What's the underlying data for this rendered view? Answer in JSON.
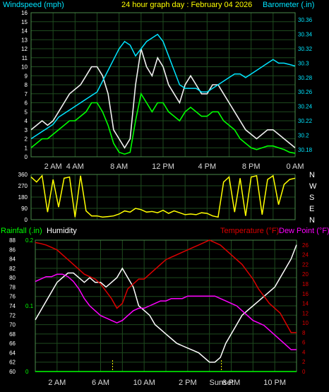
{
  "colors": {
    "background": "#000000",
    "grid": "#1e4a1e",
    "frame": "#4a8a4a",
    "wind_speed": "#00ff00",
    "gust": "#f0f0f0",
    "barometer": "#00e5ff",
    "direction": "#ffff00",
    "temperature": "#dd0000",
    "dew_point": "#ff00ff",
    "humidity": "#ffffff",
    "rainfall": "#00ff00",
    "axis_text": "#ffffff"
  },
  "header": {
    "left": "Windspeed (mph)",
    "center": "24 hour graph day : February 04 2026",
    "right": "Barometer (.in)"
  },
  "x_ticks_top": [
    "2 AM",
    "4 AM",
    "8 AM",
    "12 PM",
    "4 PM",
    "8 PM",
    "0 AM"
  ],
  "direction_labels": [
    "N",
    "W",
    "S",
    "E",
    "N"
  ],
  "lower_header": {
    "rainfall": "Rainfall (.in)",
    "humidity": "Humidity",
    "temperature": "Temperature (°F)",
    "dew_point": "Dew Point (°F)"
  },
  "x_ticks_bottom": [
    "2 AM",
    "6 AM",
    "10 AM",
    "2 PM",
    "6 PM",
    "10 PM"
  ],
  "events": [
    "Sunset"
  ],
  "chart_data": [
    {
      "type": "line",
      "title": "Windspeed (mph) / Barometer (.in)",
      "x_unit": "hour of day",
      "xlim": [
        0,
        24
      ],
      "y_left": {
        "label": "Windspeed (mph)",
        "ylim": [
          0,
          16
        ],
        "ticks": [
          0,
          1,
          2,
          3,
          4,
          5,
          6,
          7,
          8,
          9,
          10,
          11,
          12,
          13,
          14,
          15,
          16
        ]
      },
      "y_right": {
        "label": "Barometer (.in)",
        "ylim": [
          30.17,
          30.37
        ],
        "ticks": [
          "30.18",
          "30.2",
          "30.22",
          "30.24",
          "30.26",
          "30.28",
          "30.3",
          "30.32",
          "30.34",
          "30.36"
        ]
      },
      "series": [
        {
          "name": "Wind gust",
          "axis": "left",
          "x": [
            0,
            0.5,
            1,
            1.5,
            2,
            2.5,
            3,
            3.5,
            4,
            4.5,
            5,
            5.5,
            6,
            6.5,
            7,
            7.5,
            8,
            8.5,
            9,
            9.5,
            10,
            10.5,
            11,
            11.5,
            12,
            12.5,
            13,
            13.5,
            14,
            14.5,
            15,
            15.5,
            16,
            16.5,
            17,
            17.5,
            18,
            18.5,
            19,
            19.5,
            20,
            20.5,
            21,
            21.5,
            22,
            22.5,
            23,
            23.5,
            24
          ],
          "values": [
            3,
            3.5,
            4,
            3.5,
            4,
            5,
            6,
            7,
            7.5,
            8,
            9,
            10,
            10,
            9,
            7,
            3,
            2,
            1,
            2,
            8,
            12,
            10,
            9,
            11,
            10,
            8,
            7,
            6,
            8,
            9,
            8,
            7,
            7,
            8,
            8,
            7,
            6,
            5,
            4,
            3,
            2.5,
            2,
            2.5,
            3,
            3,
            2.5,
            2,
            1.5,
            1
          ]
        },
        {
          "name": "Wind speed",
          "axis": "left",
          "x": [
            0,
            0.5,
            1,
            1.5,
            2,
            2.5,
            3,
            3.5,
            4,
            4.5,
            5,
            5.5,
            6,
            6.5,
            7,
            7.5,
            8,
            8.5,
            9,
            9.5,
            10,
            10.5,
            11,
            11.5,
            12,
            12.5,
            13,
            13.5,
            14,
            14.5,
            15,
            15.5,
            16,
            16.5,
            17,
            17.5,
            18,
            18.5,
            19,
            19.5,
            20,
            20.5,
            21,
            21.5,
            22,
            22.5,
            23,
            23.5,
            24
          ],
          "values": [
            1,
            1.5,
            2,
            2,
            2.5,
            3,
            3.5,
            4,
            4,
            4.5,
            5,
            6,
            6,
            5,
            3.5,
            1.5,
            0.5,
            0.3,
            0.5,
            4,
            7,
            6,
            5,
            6,
            6,
            5,
            4.5,
            4,
            5,
            5.5,
            5,
            4.5,
            4.5,
            5,
            5,
            4,
            3.5,
            3,
            2,
            1.5,
            1,
            0.8,
            1,
            1.2,
            1.2,
            1,
            0.8,
            0.5,
            0.4
          ]
        },
        {
          "name": "Barometer",
          "axis": "right",
          "x": [
            0,
            0.5,
            1,
            1.5,
            2,
            2.5,
            3,
            3.5,
            4,
            4.5,
            5,
            5.5,
            6,
            6.5,
            7,
            7.5,
            8,
            8.5,
            9,
            9.5,
            10,
            10.5,
            11,
            11.5,
            12,
            12.5,
            13,
            13.5,
            14,
            14.5,
            15,
            15.5,
            16,
            16.5,
            17,
            17.5,
            18,
            18.5,
            19,
            19.5,
            20,
            20.5,
            21,
            21.5,
            22,
            22.5,
            23,
            23.5,
            24
          ],
          "values": [
            30.195,
            30.2,
            30.205,
            30.21,
            30.215,
            30.225,
            30.23,
            30.235,
            30.24,
            30.245,
            30.25,
            30.255,
            30.26,
            30.275,
            30.29,
            30.305,
            30.32,
            30.33,
            30.325,
            30.31,
            30.32,
            30.33,
            30.335,
            30.34,
            30.33,
            30.31,
            30.29,
            30.27,
            30.265,
            30.265,
            30.265,
            30.26,
            30.26,
            30.265,
            30.27,
            30.275,
            30.28,
            30.285,
            30.285,
            30.28,
            30.285,
            30.29,
            30.295,
            30.3,
            30.305,
            30.3,
            30.3,
            30.298,
            30.296
          ]
        }
      ]
    },
    {
      "type": "line",
      "title": "Wind direction",
      "x_unit": "hour of day",
      "xlim": [
        0,
        24
      ],
      "ylim": [
        0,
        360
      ],
      "y_ticks": [
        0,
        90,
        180,
        270,
        360
      ],
      "series": [
        {
          "name": "Wind direction",
          "x": [
            0,
            0.5,
            1,
            1.5,
            2,
            2.5,
            3,
            3.5,
            4,
            4.5,
            5,
            5.5,
            6,
            6.5,
            7,
            7.5,
            8,
            8.5,
            9,
            9.5,
            10,
            10.5,
            11,
            11.5,
            12,
            12.5,
            13,
            13.5,
            14,
            14.5,
            15,
            15.5,
            16,
            16.5,
            17,
            17.5,
            18,
            18.5,
            19,
            19.5,
            20,
            20.5,
            21,
            21.5,
            22,
            22.5,
            23,
            23.5,
            24
          ],
          "values": [
            340,
            300,
            350,
            60,
            320,
            100,
            330,
            340,
            20,
            350,
            70,
            30,
            30,
            20,
            25,
            30,
            45,
            70,
            60,
            90,
            80,
            60,
            65,
            55,
            75,
            50,
            70,
            55,
            40,
            45,
            40,
            55,
            50,
            30,
            20,
            300,
            340,
            60,
            330,
            30,
            340,
            350,
            40,
            320,
            350,
            120,
            280,
            320,
            330
          ]
        }
      ]
    },
    {
      "type": "line",
      "title": "Humidity / Temperature / Dew Point / Rainfall",
      "x_unit": "hour of day",
      "xlim": [
        0,
        24
      ],
      "y_left": {
        "label": "Humidity",
        "ylim": [
          60,
          88
        ],
        "ticks": [
          60,
          62,
          64,
          66,
          68,
          70,
          72,
          74,
          76,
          78,
          80,
          82,
          84,
          86,
          88
        ]
      },
      "y_rain": {
        "label": "Rainfall (.in)",
        "ylim": [
          0,
          0.2
        ],
        "ticks": [
          "0",
          "0.1",
          "0.2"
        ]
      },
      "y_right": {
        "label": "Temperature (°F) / Dew Point (°F)",
        "ylim": [
          0,
          27
        ],
        "ticks": [
          0,
          2,
          4,
          6,
          8,
          10,
          12,
          14,
          16,
          18,
          20,
          22,
          24,
          26
        ]
      },
      "series": [
        {
          "name": "Humidity",
          "axis": "left",
          "x": [
            0,
            0.5,
            1,
            1.5,
            2,
            2.5,
            3,
            3.5,
            4,
            4.5,
            5,
            5.5,
            6,
            6.5,
            7,
            7.5,
            8,
            8.5,
            9,
            9.5,
            10,
            10.5,
            11,
            11.5,
            12,
            12.5,
            13,
            13.5,
            14,
            14.5,
            15,
            15.5,
            16,
            16.5,
            17,
            17.5,
            18,
            18.5,
            19,
            19.5,
            20,
            20.5,
            21,
            21.5,
            22,
            22.5,
            23,
            23.5,
            24
          ],
          "values": [
            71,
            73,
            75,
            77,
            79,
            80,
            81,
            81,
            80,
            79,
            80,
            79,
            79,
            78,
            79,
            80,
            82,
            80,
            78,
            74,
            73,
            72,
            70,
            69,
            68,
            67,
            66,
            65.5,
            65,
            64.5,
            64,
            63,
            62,
            62,
            63,
            66,
            68,
            70,
            72,
            73,
            74,
            75,
            76,
            77,
            78,
            80,
            82,
            84,
            87
          ]
        },
        {
          "name": "Temperature",
          "axis": "right",
          "x": [
            0,
            0.5,
            1,
            1.5,
            2,
            2.5,
            3,
            3.5,
            4,
            4.5,
            5,
            5.5,
            6,
            6.5,
            7,
            7.5,
            8,
            8.5,
            9,
            9.5,
            10,
            10.5,
            11,
            11.5,
            12,
            12.5,
            13,
            13.5,
            14,
            14.5,
            15,
            15.5,
            16,
            16.5,
            17,
            17.5,
            18,
            18.5,
            19,
            19.5,
            20,
            20.5,
            21,
            21.5,
            22,
            22.5,
            23,
            23.5,
            24
          ],
          "values": [
            26.5,
            26.3,
            26,
            25.5,
            25,
            24,
            23,
            22,
            21,
            20,
            19.5,
            19,
            18,
            16.5,
            15,
            13,
            14,
            17,
            18,
            19,
            19,
            20,
            21,
            22,
            23,
            23.5,
            24,
            24.5,
            25,
            25.5,
            26,
            26.5,
            27,
            26.5,
            26,
            25,
            24,
            23,
            22,
            20.5,
            19,
            17,
            15.5,
            14,
            13,
            12,
            10,
            8,
            8
          ]
        },
        {
          "name": "Dew Point",
          "axis": "right",
          "x": [
            0,
            0.5,
            1,
            1.5,
            2,
            2.5,
            3,
            3.5,
            4,
            4.5,
            5,
            5.5,
            6,
            6.5,
            7,
            7.5,
            8,
            8.5,
            9,
            9.5,
            10,
            10.5,
            11,
            11.5,
            12,
            12.5,
            13,
            13.5,
            14,
            14.5,
            15,
            15.5,
            16,
            16.5,
            17,
            17.5,
            18,
            18.5,
            19,
            19.5,
            20,
            20.5,
            21,
            21.5,
            22,
            22.5,
            23,
            23.5,
            24
          ],
          "values": [
            18.5,
            19,
            19.5,
            19.5,
            20,
            20,
            19.5,
            18.5,
            17,
            15,
            13.5,
            12.5,
            11.5,
            11,
            10.5,
            10,
            10.5,
            11.5,
            12.5,
            13,
            13,
            13.5,
            14,
            14.5,
            14.5,
            15,
            15,
            15,
            15.5,
            15.5,
            15.5,
            15.5,
            15.5,
            15.5,
            15,
            14.5,
            14,
            13.5,
            12.5,
            11.5,
            10.5,
            10,
            9.5,
            8.5,
            7.5,
            6.5,
            5.5,
            4.5,
            4.5
          ]
        },
        {
          "name": "Rainfall",
          "axis": "rain",
          "x": [
            0,
            24
          ],
          "values": [
            0,
            0
          ]
        }
      ],
      "annotations": [
        {
          "text": "Sunset",
          "x": 17.1
        }
      ]
    }
  ]
}
